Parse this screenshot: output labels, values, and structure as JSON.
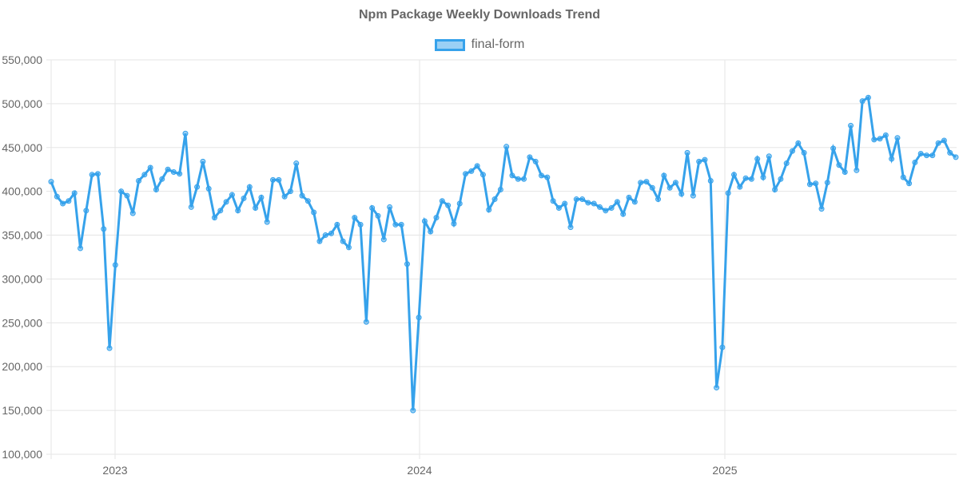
{
  "chart_data": {
    "type": "line",
    "title": "Npm Package Weekly Downloads Trend",
    "xlabel": "",
    "ylabel": "",
    "ylim": [
      100000,
      550000
    ],
    "yticks": [
      100000,
      150000,
      200000,
      250000,
      300000,
      350000,
      400000,
      450000,
      500000,
      550000
    ],
    "ytick_labels": [
      "100,000",
      "150,000",
      "200,000",
      "250,000",
      "300,000",
      "350,000",
      "400,000",
      "450,000",
      "500,000",
      "550,000"
    ],
    "xtick_labels": [
      "2023",
      "2024",
      "2025"
    ],
    "legend_position": "top",
    "grid": true,
    "series": [
      {
        "name": "final-form",
        "color": "#36a2eb",
        "values": [
          411000,
          394000,
          386000,
          389000,
          398000,
          335000,
          378000,
          419000,
          420000,
          357000,
          221000,
          316000,
          400000,
          395000,
          375000,
          412000,
          419000,
          427000,
          402000,
          414000,
          425000,
          422000,
          420000,
          466000,
          382000,
          405000,
          434000,
          403000,
          370000,
          378000,
          388000,
          396000,
          378000,
          392000,
          405000,
          381000,
          393000,
          365000,
          413000,
          413000,
          394000,
          400000,
          432000,
          395000,
          389000,
          376000,
          343000,
          350000,
          352000,
          362000,
          343000,
          336000,
          370000,
          362000,
          251000,
          381000,
          372000,
          345000,
          382000,
          362000,
          362000,
          317000,
          150000,
          256000,
          366000,
          354000,
          370000,
          389000,
          384000,
          363000,
          386000,
          420000,
          423000,
          429000,
          419000,
          379000,
          391000,
          402000,
          451000,
          418000,
          414000,
          414000,
          439000,
          434000,
          418000,
          416000,
          389000,
          381000,
          386000,
          359000,
          391000,
          391000,
          387000,
          386000,
          382000,
          378000,
          381000,
          388000,
          374000,
          393000,
          388000,
          410000,
          411000,
          404000,
          391000,
          418000,
          404000,
          410000,
          397000,
          444000,
          395000,
          434000,
          436000,
          412000,
          176000,
          222000,
          398000,
          419000,
          405000,
          415000,
          414000,
          437000,
          416000,
          440000,
          402000,
          414000,
          432000,
          446000,
          455000,
          444000,
          408000,
          409000,
          380000,
          410000,
          449000,
          430000,
          422000,
          475000,
          424000,
          503000,
          507000,
          459000,
          460000,
          464000,
          437000,
          461000,
          416000,
          409000,
          433000,
          443000,
          441000,
          441000,
          455000,
          458000,
          444000,
          439000
        ]
      }
    ]
  }
}
